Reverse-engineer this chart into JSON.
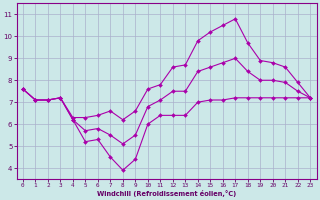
{
  "xlabel": "Windchill (Refroidissement éolien,°C)",
  "background_color": "#cce8e8",
  "grid_color": "#aab0cc",
  "line_color": "#aa00aa",
  "xlim": [
    -0.5,
    23.5
  ],
  "ylim": [
    3.5,
    11.5
  ],
  "xticks": [
    0,
    1,
    2,
    3,
    4,
    5,
    6,
    7,
    8,
    9,
    10,
    11,
    12,
    13,
    14,
    15,
    16,
    17,
    18,
    19,
    20,
    21,
    22,
    23
  ],
  "yticks": [
    4,
    5,
    6,
    7,
    8,
    9,
    10,
    11
  ],
  "line_max_x": [
    0,
    1,
    2,
    3,
    4,
    5,
    6,
    7,
    8,
    9,
    10,
    11,
    12,
    13,
    14,
    15,
    16,
    17,
    18,
    19,
    20,
    21,
    22,
    23
  ],
  "line_max_y": [
    7.6,
    7.1,
    7.1,
    7.2,
    6.3,
    6.3,
    6.4,
    6.6,
    6.2,
    6.6,
    7.6,
    7.8,
    8.6,
    8.7,
    9.8,
    10.2,
    10.5,
    10.8,
    9.7,
    8.9,
    8.8,
    8.6,
    7.9,
    7.2
  ],
  "line_min_x": [
    0,
    1,
    2,
    3,
    4,
    5,
    6,
    7,
    8,
    9,
    10,
    11,
    12,
    13,
    14,
    15,
    16,
    17,
    18,
    19,
    20,
    21,
    22,
    23
  ],
  "line_min_y": [
    7.6,
    7.1,
    7.1,
    7.2,
    6.2,
    5.2,
    5.3,
    4.5,
    3.9,
    4.4,
    6.0,
    6.4,
    6.4,
    6.4,
    7.0,
    7.1,
    7.1,
    7.2,
    7.2,
    7.2,
    7.2,
    7.2,
    7.2,
    7.2
  ],
  "line_avg_x": [
    0,
    1,
    2,
    3,
    4,
    5,
    6,
    7,
    8,
    9,
    10,
    11,
    12,
    13,
    14,
    15,
    16,
    17,
    18,
    19,
    20,
    21,
    22,
    23
  ],
  "line_avg_y": [
    7.6,
    7.1,
    7.1,
    7.2,
    6.2,
    5.7,
    5.8,
    5.5,
    5.1,
    5.5,
    6.8,
    7.1,
    7.5,
    7.5,
    8.4,
    8.6,
    8.8,
    9.0,
    8.4,
    8.0,
    8.0,
    7.9,
    7.5,
    7.2
  ]
}
